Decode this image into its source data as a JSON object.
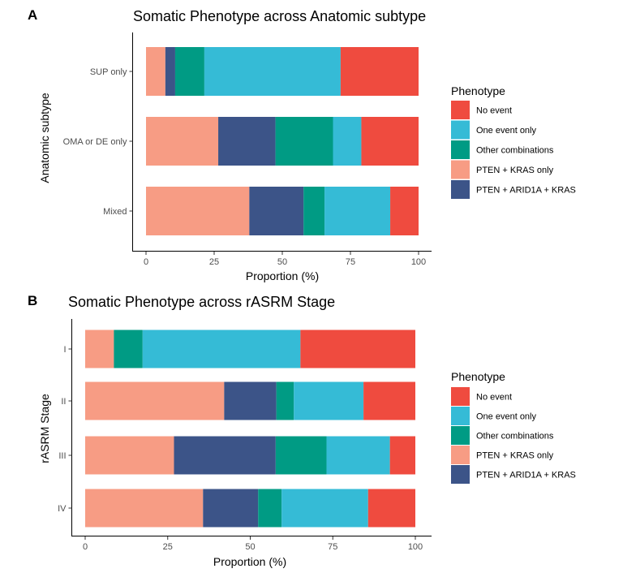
{
  "legend": {
    "title": "Phenotype",
    "entries": [
      {
        "label": "No event",
        "color": "#EF4B3F"
      },
      {
        "label": "One event only",
        "color": "#35BBD6"
      },
      {
        "label": "Other combinations",
        "color": "#009B84"
      },
      {
        "label": "PTEN + KRAS only",
        "color": "#F79C84"
      },
      {
        "label": "PTEN + ARID1A + KRAS",
        "color": "#3C5488"
      }
    ]
  },
  "chart_data": [
    {
      "panel": "A",
      "type": "bar",
      "orientation": "horizontal",
      "stacked": true,
      "title": "Somatic Phenotype across Anatomic subtype",
      "xlabel": "Proportion (%)",
      "ylabel": "Anatomic subtype",
      "xlim": [
        0,
        100
      ],
      "xticks": [
        0,
        25,
        50,
        75,
        100
      ],
      "grid": false,
      "legend_position": "right",
      "categories": [
        "SUP only",
        "OMA or DE only",
        "Mixed"
      ],
      "series": [
        {
          "name": "PTEN + KRAS only",
          "color": "#F79C84",
          "values": [
            7.1,
            26.5,
            37.9
          ]
        },
        {
          "name": "PTEN + ARID1A + KRAS",
          "color": "#3C5488",
          "values": [
            3.6,
            21.0,
            19.9
          ]
        },
        {
          "name": "Other combinations",
          "color": "#009B84",
          "values": [
            10.7,
            21.1,
            7.7
          ]
        },
        {
          "name": "One event only",
          "color": "#35BBD6",
          "values": [
            50.0,
            10.4,
            24.1
          ]
        },
        {
          "name": "No event",
          "color": "#EF4B3F",
          "values": [
            28.6,
            21.0,
            10.4
          ]
        }
      ]
    },
    {
      "panel": "B",
      "type": "bar",
      "orientation": "horizontal",
      "stacked": true,
      "title": "Somatic Phenotype across rASRM Stage",
      "xlabel": "Proportion (%)",
      "ylabel": "rASRM Stage",
      "xlim": [
        0,
        100
      ],
      "xticks": [
        0,
        25,
        50,
        75,
        100
      ],
      "grid": false,
      "legend_position": "right",
      "categories": [
        "I",
        "II",
        "III",
        "IV"
      ],
      "series": [
        {
          "name": "PTEN + KRAS only",
          "color": "#F79C84",
          "values": [
            8.7,
            42.1,
            26.9,
            35.7
          ]
        },
        {
          "name": "PTEN + ARID1A + KRAS",
          "color": "#3C5488",
          "values": [
            0,
            15.8,
            30.8,
            16.7
          ]
        },
        {
          "name": "Other combinations",
          "color": "#009B84",
          "values": [
            8.7,
            5.3,
            15.4,
            7.1
          ]
        },
        {
          "name": "One event only",
          "color": "#35BBD6",
          "values": [
            47.8,
            21.1,
            19.2,
            26.2
          ]
        },
        {
          "name": "No event",
          "color": "#EF4B3F",
          "values": [
            34.8,
            15.7,
            7.7,
            14.3
          ]
        }
      ]
    }
  ]
}
